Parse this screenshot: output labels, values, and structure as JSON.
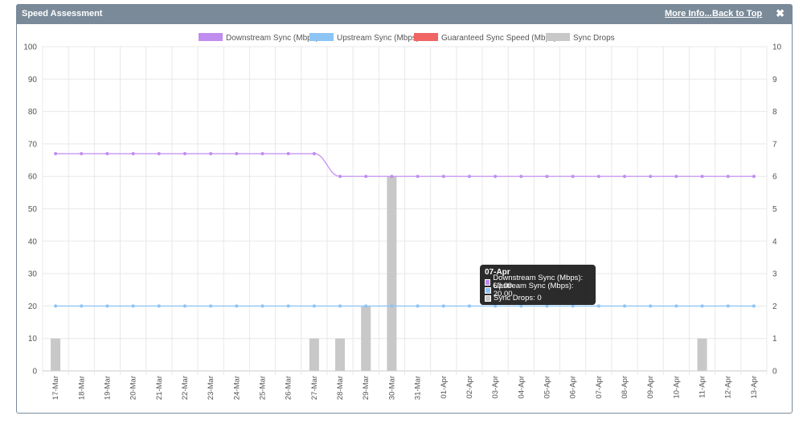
{
  "panel": {
    "title": "Speed Assessment",
    "more_info": "More Info...",
    "back_to_top": "Back to Top",
    "close_icon": "close-icon",
    "header_color": "#7a8a99"
  },
  "tooltip": {
    "title": "07-Apr",
    "rows": [
      {
        "label": "Downstream Sync (Mbps): 60.00",
        "color": "#c08cf0"
      },
      {
        "label": "Upstream Sync (Mbps): 20.00",
        "color": "#8cc4f4"
      },
      {
        "label": "Sync Drops: 0",
        "color": "#c8c8c8"
      }
    ]
  },
  "chart_data": {
    "type": "line",
    "categories": [
      "17-Mar",
      "18-Mar",
      "19-Mar",
      "20-Mar",
      "21-Mar",
      "22-Mar",
      "23-Mar",
      "24-Mar",
      "25-Mar",
      "26-Mar",
      "27-Mar",
      "28-Mar",
      "29-Mar",
      "30-Mar",
      "31-Mar",
      "01-Apr",
      "02-Apr",
      "03-Apr",
      "04-Apr",
      "05-Apr",
      "06-Apr",
      "07-Apr",
      "08-Apr",
      "09-Apr",
      "10-Apr",
      "11-Apr",
      "12-Apr",
      "13-Apr"
    ],
    "legend": [
      {
        "name": "Downstream Sync (Mbps)",
        "color": "#c08cf0"
      },
      {
        "name": "Upstream Sync (Mbps)",
        "color": "#8cc4f4"
      },
      {
        "name": "Guaranteed Sync Speed (Mbps)",
        "color": "#f06464"
      },
      {
        "name": "Sync Drops",
        "color": "#c8c8c8"
      }
    ],
    "series": [
      {
        "name": "Downstream Sync (Mbps)",
        "type": "line",
        "axis": "left",
        "color": "#c08cf0",
        "values": [
          67,
          67,
          67,
          67,
          67,
          67,
          67,
          67,
          67,
          67,
          67,
          60,
          60,
          60,
          60,
          60,
          60,
          60,
          60,
          60,
          60,
          60,
          60,
          60,
          60,
          60,
          60,
          60
        ]
      },
      {
        "name": "Upstream Sync (Mbps)",
        "type": "line",
        "axis": "left",
        "color": "#8cc4f4",
        "values": [
          20,
          20,
          20,
          20,
          20,
          20,
          20,
          20,
          20,
          20,
          20,
          20,
          20,
          20,
          20,
          20,
          20,
          20,
          20,
          20,
          20,
          20,
          20,
          20,
          20,
          20,
          20,
          20
        ]
      },
      {
        "name": "Sync Drops",
        "type": "bar",
        "axis": "right",
        "color": "#c8c8c8",
        "values": [
          1,
          0,
          0,
          0,
          0,
          0,
          0,
          0,
          0,
          0,
          1,
          1,
          2,
          6,
          0,
          0,
          0,
          0,
          0,
          0,
          0,
          0,
          0,
          0,
          0,
          1,
          0,
          0
        ]
      }
    ],
    "y_left": {
      "min": 0,
      "max": 100,
      "ticks": [
        "0",
        "10",
        "20",
        "30",
        "40",
        "50",
        "60",
        "70",
        "80",
        "90",
        "100"
      ]
    },
    "y_right": {
      "min": 0,
      "max": 10,
      "ticks": [
        "0",
        "1",
        "2",
        "3",
        "4",
        "5",
        "6",
        "7",
        "8",
        "9",
        "10"
      ]
    },
    "grid": true,
    "legend_position": "top"
  }
}
